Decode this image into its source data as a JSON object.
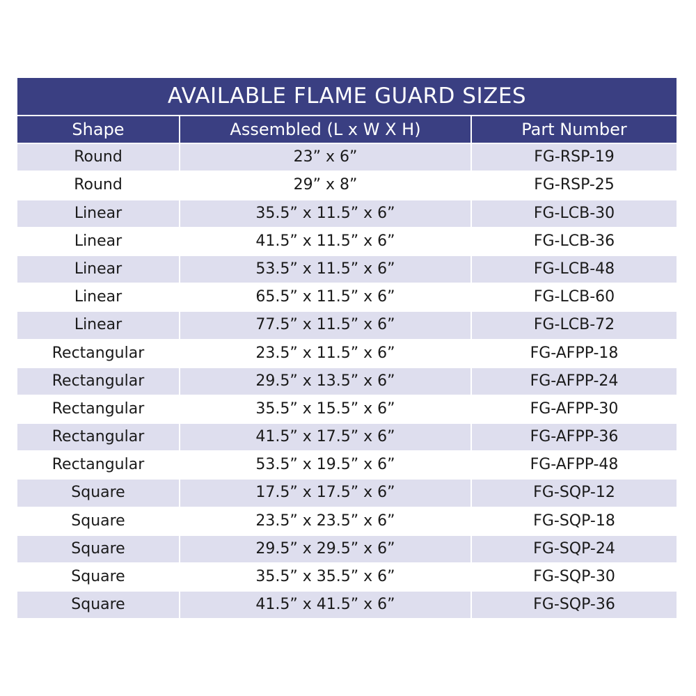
{
  "title": "AVAILABLE FLAME GUARD SIZES",
  "colors": {
    "header_bg": "#3a3f82",
    "row_shade": "#dedeee"
  },
  "columns": [
    "Shape",
    "Assembled (L x W X H)",
    "Part Number"
  ],
  "rows": [
    [
      "Round",
      "23” x 6”",
      "FG-RSP-19"
    ],
    [
      "Round",
      "29” x 8”",
      "FG-RSP-25"
    ],
    [
      "Linear",
      "35.5” x 11.5” x 6”",
      "FG-LCB-30"
    ],
    [
      "Linear",
      "41.5” x 11.5” x 6”",
      "FG-LCB-36"
    ],
    [
      "Linear",
      "53.5” x 11.5” x 6”",
      "FG-LCB-48"
    ],
    [
      "Linear",
      "65.5” x 11.5” x 6”",
      "FG-LCB-60"
    ],
    [
      "Linear",
      "77.5” x 11.5” x 6”",
      "FG-LCB-72"
    ],
    [
      "Rectangular",
      "23.5” x 11.5” x 6”",
      "FG-AFPP-18"
    ],
    [
      "Rectangular",
      "29.5” x 13.5” x 6”",
      "FG-AFPP-24"
    ],
    [
      "Rectangular",
      "35.5” x 15.5” x 6”",
      "FG-AFPP-30"
    ],
    [
      "Rectangular",
      "41.5” x 17.5” x 6”",
      "FG-AFPP-36"
    ],
    [
      "Rectangular",
      "53.5” x 19.5” x 6”",
      "FG-AFPP-48"
    ],
    [
      "Square",
      "17.5” x 17.5” x 6”",
      "FG-SQP-12"
    ],
    [
      "Square",
      "23.5” x 23.5” x 6”",
      "FG-SQP-18"
    ],
    [
      "Square",
      "29.5” x 29.5” x 6”",
      "FG-SQP-24"
    ],
    [
      "Square",
      "35.5” x 35.5” x 6”",
      "FG-SQP-30"
    ],
    [
      "Square",
      "41.5” x 41.5” x 6”",
      "FG-SQP-36"
    ]
  ]
}
